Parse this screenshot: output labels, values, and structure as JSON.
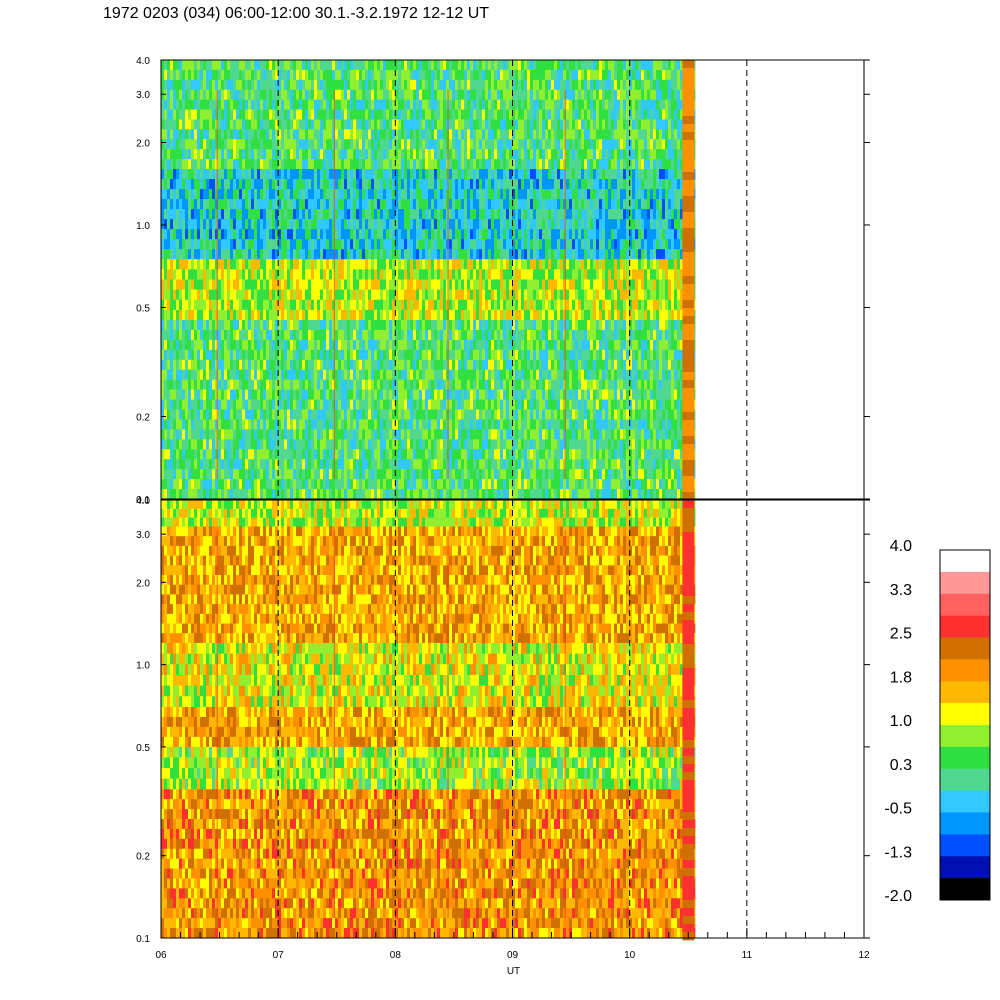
{
  "title": "1972 0203 (034) 06:00-12:00 30.1.-3.2.1972  12-12 UT",
  "colors": {
    "palette": [
      "#000000",
      "#0010b0",
      "#0050ff",
      "#0096ff",
      "#30c8ff",
      "#50d890",
      "#30e040",
      "#90f030",
      "#ffff00",
      "#ffb800",
      "#ff9000",
      "#d07000",
      "#ff3030",
      "#ff6060",
      "#ff9898",
      "#ffffff"
    ]
  },
  "chart_data": [
    {
      "type": "heatmap",
      "panel": "upper",
      "x": [
        "06",
        "07",
        "08",
        "09",
        "10",
        "11",
        "12"
      ],
      "xlim": [
        6,
        12
      ],
      "data_end_x": 10.55,
      "y_scale": "log",
      "ylim": [
        0.1,
        4.0
      ],
      "yticks": [
        "0.1",
        "0.2",
        "0.5",
        "1.0",
        "2.0",
        "3.0",
        "4.0"
      ],
      "bands": [
        {
          "y": [
            1.6,
            4.0
          ],
          "level": 0.3,
          "note_color": "green/teal"
        },
        {
          "y": [
            0.75,
            1.6
          ],
          "level": -0.3
        },
        {
          "y": [
            0.45,
            0.75
          ],
          "level": 1.0
        },
        {
          "y": [
            0.1,
            0.45
          ],
          "level": 0.3
        }
      ],
      "dashed_lines_x": [
        7,
        8,
        9,
        10,
        11
      ]
    },
    {
      "type": "heatmap",
      "panel": "lower",
      "x": [
        "06",
        "07",
        "08",
        "09",
        "10",
        "11",
        "12"
      ],
      "xlim": [
        6,
        12
      ],
      "data_end_x": 10.55,
      "y_scale": "log",
      "ylim": [
        0.1,
        4.0
      ],
      "yticks": [
        "0.1",
        "0.2",
        "0.5",
        "1.0",
        "2.0",
        "3.0",
        "4.0"
      ],
      "xlabel": "UT",
      "bands": [
        {
          "y": [
            3.2,
            4.0
          ],
          "level": 1.0
        },
        {
          "y": [
            1.2,
            3.2
          ],
          "level": 1.8
        },
        {
          "y": [
            0.7,
            1.2
          ],
          "level": 1.2
        },
        {
          "y": [
            0.5,
            0.7
          ],
          "level": 1.8
        },
        {
          "y": [
            0.35,
            0.5
          ],
          "level": 0.8
        },
        {
          "y": [
            0.1,
            0.35
          ],
          "level": 2.0
        }
      ],
      "dashed_lines_x": [
        7,
        8,
        9,
        10,
        11
      ]
    }
  ],
  "colorbar": {
    "labels": [
      "4.0",
      "3.3",
      "2.5",
      "1.8",
      "1.0",
      "0.3",
      "-0.5",
      "-1.3",
      "-2.0"
    ],
    "range": [
      -2.0,
      4.0
    ]
  }
}
